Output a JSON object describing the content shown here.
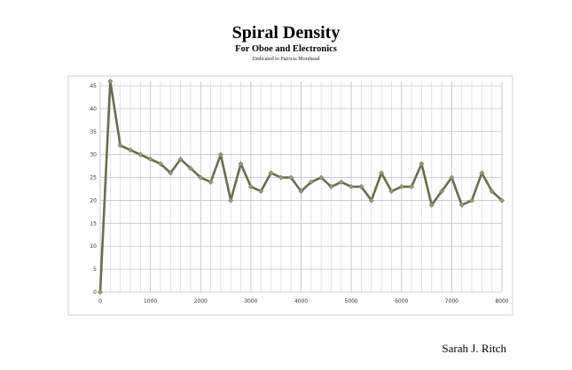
{
  "chart_data": {
    "type": "line",
    "title": "Spiral Density",
    "subtitle": "For Oboe and Electronics",
    "dedication": "Dedicated to Patricia Morehead",
    "author": "Sarah J. Ritch",
    "xlabel": "",
    "ylabel": "",
    "xlim": [
      0,
      8000
    ],
    "ylim": [
      0,
      45
    ],
    "x_ticks": [
      0,
      1000,
      2000,
      3000,
      4000,
      5000,
      6000,
      7000,
      8000
    ],
    "y_ticks": [
      0,
      5,
      10,
      15,
      20,
      25,
      30,
      35,
      40,
      45
    ],
    "grid": true,
    "legend": "none",
    "line_color": "#6b6b4f",
    "marker_color": "#9a9a7a",
    "series": [
      {
        "x": [
          0,
          200,
          400,
          600,
          800,
          1000,
          1200,
          1400,
          1600,
          1800,
          2000,
          2200,
          2400,
          2600,
          2800,
          3000,
          3200,
          3400,
          3600,
          3800,
          4000,
          4200,
          4400,
          4600,
          4800,
          5000,
          5200,
          5400,
          5600,
          5800,
          6000,
          6200,
          6400,
          6600,
          6800,
          7000,
          7200,
          7400,
          7600,
          7800,
          8000
        ],
        "values": [
          0,
          46,
          32,
          31,
          30,
          29,
          28,
          26,
          29,
          27,
          25,
          24,
          30,
          20,
          28,
          23,
          22,
          26,
          25,
          25,
          22,
          24,
          25,
          23,
          24,
          23,
          23,
          20,
          26,
          22,
          23,
          23,
          28,
          19,
          22,
          25,
          19,
          20,
          26,
          22,
          20
        ]
      }
    ]
  }
}
